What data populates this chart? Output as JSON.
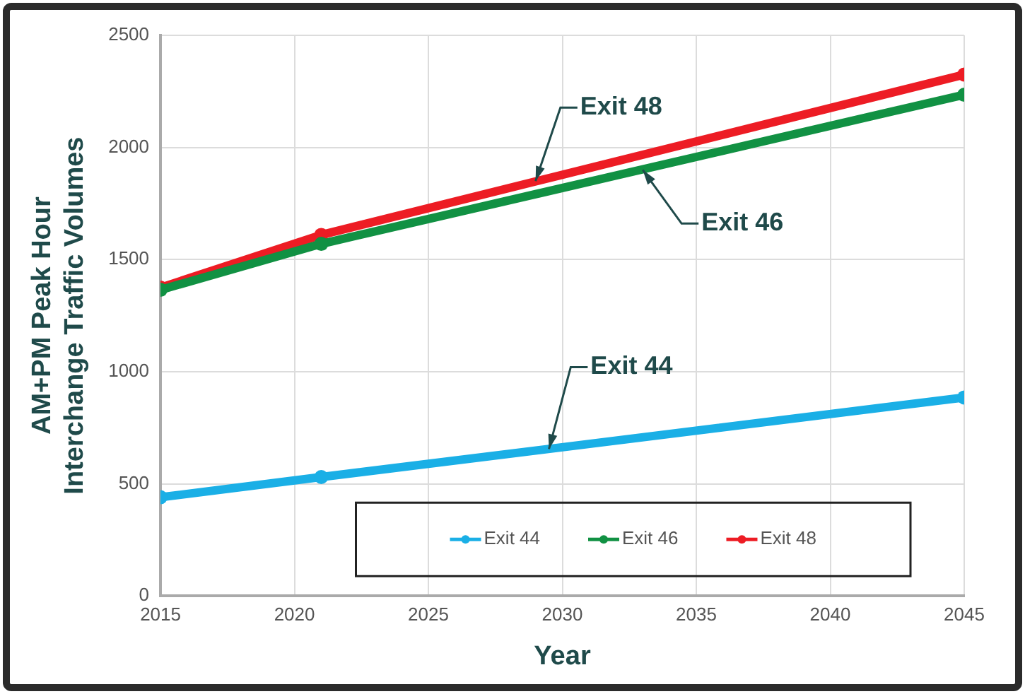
{
  "chart_data": {
    "type": "line",
    "xlabel": "Year",
    "ylabel": "AM+PM Peak Hour\nInterchange Traffic Volumes",
    "x": [
      2015,
      2021,
      2045
    ],
    "series": [
      {
        "name": "Exit 44",
        "color": "#1aafe6",
        "values": [
          440,
          530,
          885
        ]
      },
      {
        "name": "Exit 46",
        "color": "#119143",
        "values": [
          1365,
          1570,
          2235
        ]
      },
      {
        "name": "Exit 48",
        "color": "#ed1c24",
        "values": [
          1375,
          1610,
          2325
        ]
      }
    ],
    "xlim": [
      2015,
      2045
    ],
    "xticks": [
      2015,
      2020,
      2025,
      2030,
      2035,
      2040,
      2045
    ],
    "ylim": [
      0,
      2500
    ],
    "yticks": [
      0,
      500,
      1000,
      1500,
      2000,
      2500
    ],
    "grid": true,
    "legend": "bottom right",
    "marker": "circle",
    "line_style": "solid",
    "annotations": [
      {
        "text": "Exit 48",
        "x": 2029,
        "y": 1850
      },
      {
        "text": "Exit 46",
        "x": 2033,
        "y": 1900
      },
      {
        "text": "Exit 44",
        "x": 2029.5,
        "y": 655
      }
    ]
  }
}
